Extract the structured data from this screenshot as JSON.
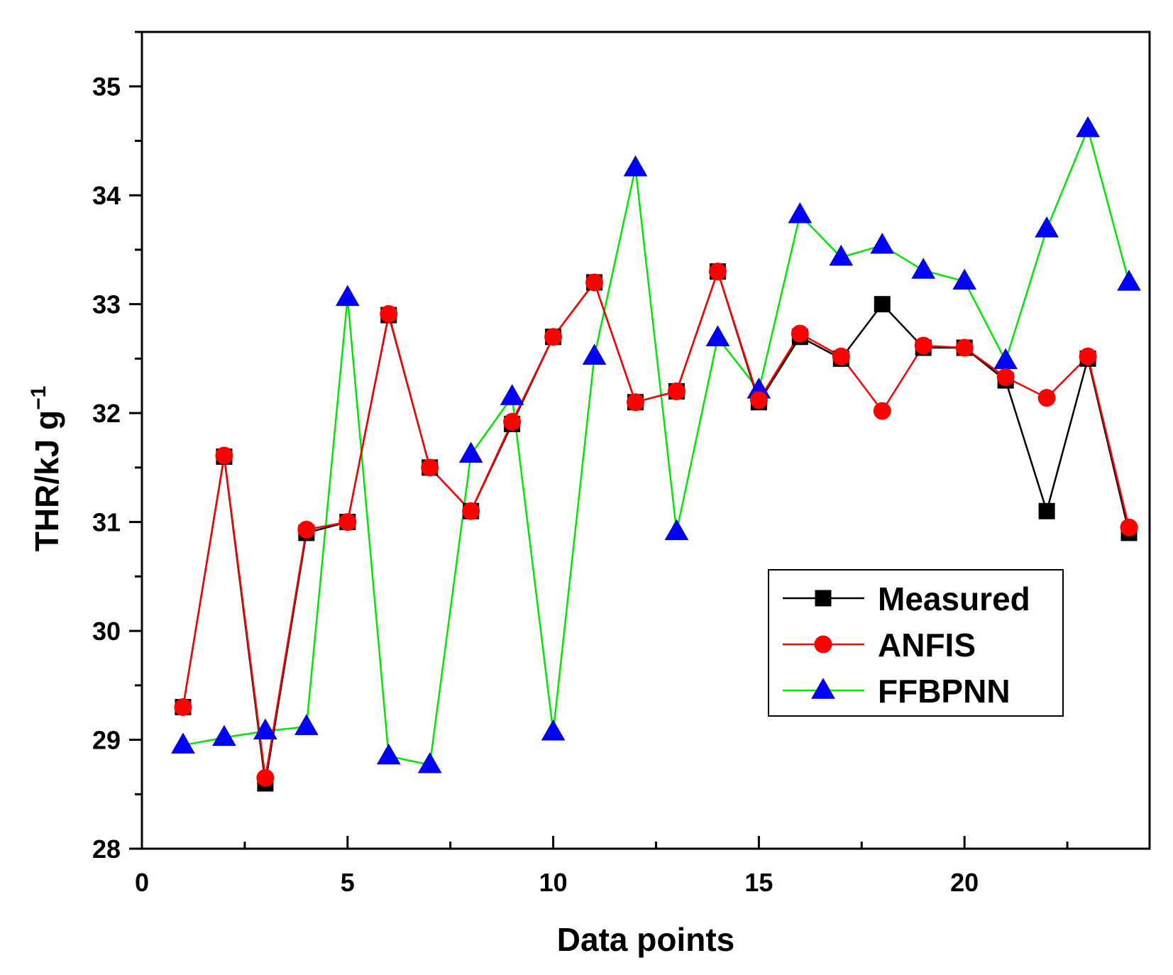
{
  "chart_data": {
    "type": "line",
    "title": "",
    "xlabel": "Data points",
    "ylabel": "THR/kJ g",
    "ylabel_superscript": "−1",
    "xlim": [
      0,
      24.5
    ],
    "ylim": [
      28,
      35.5
    ],
    "x_major_ticks": [
      0,
      5,
      10,
      15,
      20
    ],
    "x_minor_ticks": [
      2.5,
      7.5,
      12.5,
      17.5,
      22.5
    ],
    "y_major_ticks": [
      28,
      29,
      30,
      31,
      32,
      33,
      34,
      35
    ],
    "y_minor_ticks": [
      28.5,
      29.5,
      30.5,
      31.5,
      32.5,
      33.5,
      34.5,
      35.5
    ],
    "grid": false,
    "legend_position": "lower-right",
    "x": [
      1,
      2,
      3,
      4,
      5,
      6,
      7,
      8,
      9,
      10,
      11,
      12,
      13,
      14,
      15,
      16,
      17,
      18,
      19,
      20,
      21,
      22,
      23,
      24
    ],
    "series": [
      {
        "name": "Measured",
        "color": "#000000",
        "marker": "square",
        "values": [
          29.3,
          31.6,
          28.6,
          30.9,
          31.0,
          32.9,
          31.5,
          31.1,
          31.9,
          32.7,
          33.2,
          32.1,
          32.2,
          33.3,
          32.1,
          32.7,
          32.5,
          33.0,
          32.6,
          32.6,
          32.3,
          31.1,
          32.5,
          30.9
        ]
      },
      {
        "name": "ANFIS",
        "color": "#ff0000",
        "marker": "circle",
        "values": [
          29.3,
          31.61,
          28.65,
          30.93,
          31.0,
          32.91,
          31.5,
          31.1,
          31.92,
          32.7,
          33.2,
          32.1,
          32.2,
          33.3,
          32.12,
          32.73,
          32.52,
          32.02,
          32.62,
          32.6,
          32.33,
          32.14,
          32.52,
          30.95
        ]
      },
      {
        "name": "FFBPNN",
        "color": "#00e600",
        "marker_color": "#0000ff",
        "marker": "triangle",
        "values": [
          28.95,
          29.02,
          29.08,
          29.12,
          33.06,
          28.85,
          28.77,
          31.62,
          32.15,
          29.07,
          32.52,
          34.25,
          30.91,
          32.69,
          32.21,
          33.82,
          33.43,
          33.54,
          33.31,
          33.21,
          32.48,
          33.69,
          34.61,
          33.2
        ]
      }
    ]
  }
}
